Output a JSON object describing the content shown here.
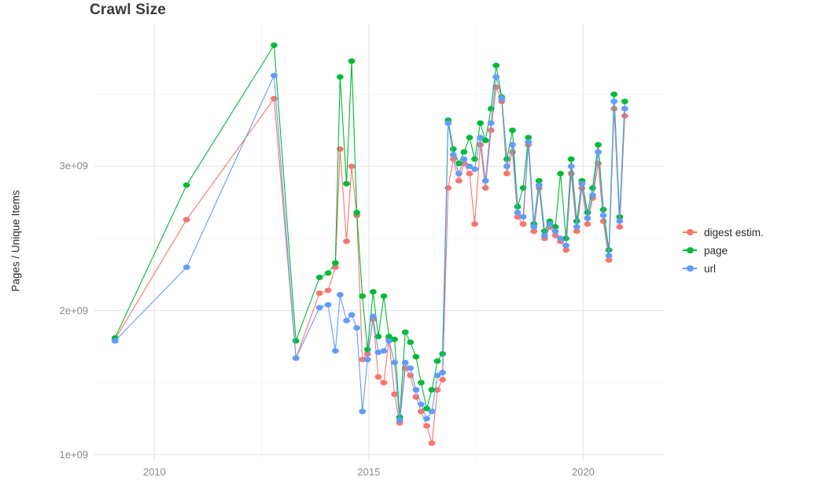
{
  "chart_data": {
    "type": "line",
    "title": "Crawl Size",
    "xlabel": "",
    "ylabel": "Pages / Unique Items",
    "value_unit": "1e9 (billions)",
    "grid": true,
    "legend_position": "right",
    "xlim": [
      2008.6,
      2021.9
    ],
    "ylim": [
      0.96,
      3.99
    ],
    "x_ticks": [
      {
        "value": 2010,
        "label": "2010"
      },
      {
        "value": 2015,
        "label": "2015"
      },
      {
        "value": 2020,
        "label": "2020"
      }
    ],
    "y_ticks": [
      {
        "value": 1,
        "label": "1e+09"
      },
      {
        "value": 2,
        "label": "2e+09"
      },
      {
        "value": 3,
        "label": "3e+09"
      }
    ],
    "minor_x_gridlines": [
      2012.5,
      2017.5
    ],
    "minor_y_gridlines": [
      1.5,
      2.5,
      3.5
    ],
    "x": [
      2009.08,
      2010.75,
      2012.79,
      2013.3,
      2013.85,
      2014.05,
      2014.22,
      2014.33,
      2014.48,
      2014.6,
      2014.72,
      2014.85,
      2014.97,
      2015.1,
      2015.22,
      2015.35,
      2015.47,
      2015.6,
      2015.72,
      2015.85,
      2015.97,
      2016.1,
      2016.22,
      2016.35,
      2016.47,
      2016.6,
      2016.72,
      2016.85,
      2016.97,
      2017.1,
      2017.22,
      2017.35,
      2017.47,
      2017.6,
      2017.72,
      2017.85,
      2017.97,
      2018.1,
      2018.22,
      2018.35,
      2018.47,
      2018.6,
      2018.72,
      2018.85,
      2018.97,
      2019.1,
      2019.22,
      2019.35,
      2019.47,
      2019.6,
      2019.72,
      2019.85,
      2019.97,
      2020.1,
      2020.22,
      2020.35,
      2020.47,
      2020.6,
      2020.72,
      2020.85,
      2020.97
    ],
    "series": [
      {
        "name": "digest estim.",
        "color": "#F8766D",
        "values": [
          1.8,
          2.63,
          3.47,
          1.67,
          2.12,
          2.14,
          2.3,
          3.12,
          2.48,
          3.0,
          2.66,
          1.66,
          1.7,
          1.94,
          1.54,
          1.5,
          1.8,
          1.42,
          1.22,
          1.6,
          1.55,
          1.4,
          1.3,
          1.2,
          1.08,
          1.45,
          1.52,
          2.85,
          3.05,
          2.9,
          3.02,
          2.95,
          2.6,
          3.15,
          2.85,
          3.25,
          3.55,
          3.45,
          2.95,
          3.1,
          2.65,
          2.6,
          3.15,
          2.55,
          2.85,
          2.5,
          2.58,
          2.52,
          2.48,
          2.42,
          2.95,
          2.55,
          2.85,
          2.6,
          2.78,
          3.02,
          2.62,
          2.35,
          3.4,
          2.58,
          3.35
        ]
      },
      {
        "name": "page",
        "color": "#00BA38",
        "values": [
          1.81,
          2.87,
          3.84,
          1.79,
          2.23,
          2.26,
          2.33,
          3.62,
          2.88,
          3.73,
          2.68,
          2.1,
          1.73,
          2.13,
          1.82,
          2.1,
          1.82,
          1.8,
          1.26,
          1.85,
          1.78,
          1.68,
          1.5,
          1.32,
          1.45,
          1.65,
          1.7,
          3.32,
          3.12,
          3.02,
          3.1,
          3.2,
          3.05,
          3.3,
          3.18,
          3.4,
          3.7,
          3.48,
          3.05,
          3.25,
          2.72,
          2.85,
          3.2,
          2.6,
          2.9,
          2.55,
          2.62,
          2.58,
          2.95,
          2.5,
          3.05,
          2.62,
          2.9,
          2.68,
          2.85,
          3.15,
          2.7,
          2.42,
          3.5,
          2.65,
          3.45
        ]
      },
      {
        "name": "url",
        "color": "#619CFF",
        "values": [
          1.79,
          2.3,
          3.63,
          1.67,
          2.02,
          2.04,
          1.72,
          2.11,
          1.93,
          1.97,
          1.88,
          1.3,
          1.66,
          1.96,
          1.71,
          1.72,
          1.79,
          1.64,
          1.24,
          1.64,
          1.6,
          1.45,
          1.35,
          1.25,
          1.3,
          1.55,
          1.57,
          3.3,
          3.08,
          2.95,
          3.05,
          3.0,
          2.98,
          3.2,
          2.9,
          3.3,
          3.62,
          3.47,
          3.0,
          3.15,
          2.68,
          2.65,
          3.17,
          2.58,
          2.87,
          2.52,
          2.6,
          2.55,
          2.5,
          2.45,
          3.0,
          2.58,
          2.88,
          2.64,
          2.8,
          3.1,
          2.66,
          2.38,
          3.45,
          2.62,
          3.4
        ]
      }
    ]
  }
}
